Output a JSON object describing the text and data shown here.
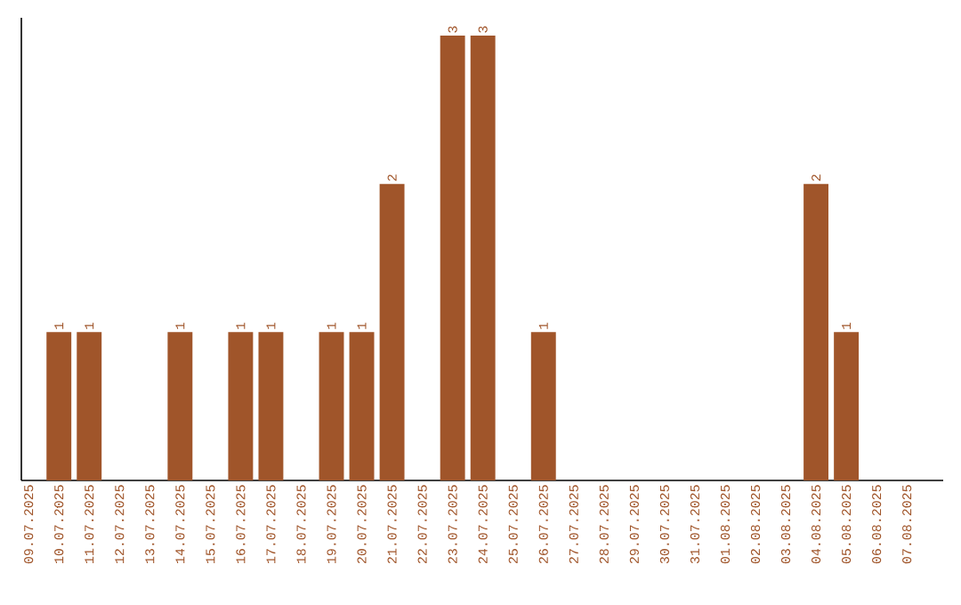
{
  "chart_data": {
    "type": "bar",
    "categories": [
      "09.07.2025",
      "10.07.2025",
      "11.07.2025",
      "12.07.2025",
      "13.07.2025",
      "14.07.2025",
      "15.07.2025",
      "16.07.2025",
      "17.07.2025",
      "18.07.2025",
      "19.07.2025",
      "20.07.2025",
      "21.07.2025",
      "22.07.2025",
      "23.07.2025",
      "24.07.2025",
      "25.07.2025",
      "26.07.2025",
      "27.07.2025",
      "28.07.2025",
      "29.07.2025",
      "30.07.2025",
      "31.07.2025",
      "01.08.2025",
      "02.08.2025",
      "03.08.2025",
      "04.08.2025",
      "05.08.2025",
      "06.08.2025",
      "07.08.2025"
    ],
    "values": [
      0,
      1,
      1,
      0,
      0,
      1,
      0,
      1,
      1,
      0,
      1,
      1,
      2,
      0,
      3,
      3,
      0,
      1,
      0,
      0,
      0,
      0,
      0,
      0,
      0,
      0,
      2,
      1,
      0,
      0
    ],
    "value_labels": [
      null,
      "1",
      "1",
      null,
      null,
      "1",
      null,
      "1",
      "1",
      null,
      "1",
      "1",
      "2",
      null,
      "3",
      "3",
      null,
      "1",
      null,
      null,
      null,
      null,
      null,
      null,
      null,
      null,
      "2",
      "1",
      null,
      null
    ],
    "color": "#a0552a"
  }
}
